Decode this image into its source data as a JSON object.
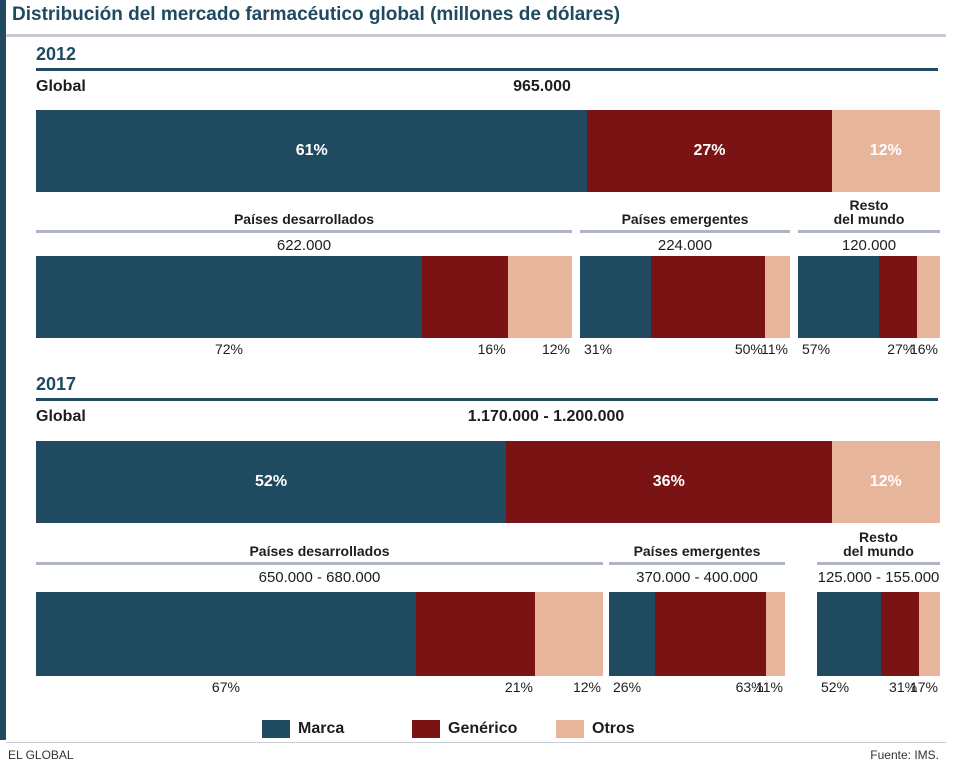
{
  "title": "Distribución del mercado farmacéutico global (millones de dólares)",
  "colors": {
    "marca": "#1f4a5f",
    "generico": "#7a1414",
    "otros": "#e6b59a"
  },
  "legend": [
    {
      "key": "marca",
      "label": "Marca"
    },
    {
      "key": "generico",
      "label": "Genérico"
    },
    {
      "key": "otros",
      "label": "Otros"
    }
  ],
  "footer": {
    "left": "EL GLOBAL",
    "right": "Fuente: IMS."
  },
  "chart_data": [
    {
      "type": "bar",
      "year": "2012",
      "global_label": "Global",
      "global_total": "965.000",
      "global_values": [
        61,
        27,
        12
      ],
      "global_value_labels": [
        "61%",
        "27%",
        "12%"
      ],
      "regions": [
        {
          "name": "Países desarrollados",
          "total": "622.000",
          "values": [
            72,
            16,
            12
          ],
          "value_labels": [
            "72%",
            "16%",
            "12%"
          ]
        },
        {
          "name": "Países emergentes",
          "total": "224.000",
          "values": [
            31,
            50,
            11
          ],
          "value_labels": [
            "31%",
            "50%",
            "11%"
          ]
        },
        {
          "name": "Resto\ndel mundo",
          "total": "120.000",
          "values": [
            57,
            27,
            16
          ],
          "value_labels": [
            "57%",
            "27%",
            "16%"
          ]
        }
      ]
    },
    {
      "type": "bar",
      "year": "2017",
      "global_label": "Global",
      "global_total": "1.170.000 - 1.200.000",
      "global_values": [
        52,
        36,
        12
      ],
      "global_value_labels": [
        "52%",
        "36%",
        "12%"
      ],
      "regions": [
        {
          "name": "Países desarrollados",
          "total": "650.000 - 680.000",
          "values": [
            67,
            21,
            12
          ],
          "value_labels": [
            "67%",
            "21%",
            "12%"
          ]
        },
        {
          "name": "Países emergentes",
          "total": "370.000 - 400.000",
          "values": [
            26,
            63,
            11
          ],
          "value_labels": [
            "26%",
            "63%",
            "11%"
          ]
        },
        {
          "name": "Resto\ndel mundo",
          "total": "125.000 - 155.000",
          "values": [
            52,
            31,
            17
          ],
          "value_labels": [
            "52%",
            "31%",
            "17%"
          ]
        }
      ]
    }
  ]
}
